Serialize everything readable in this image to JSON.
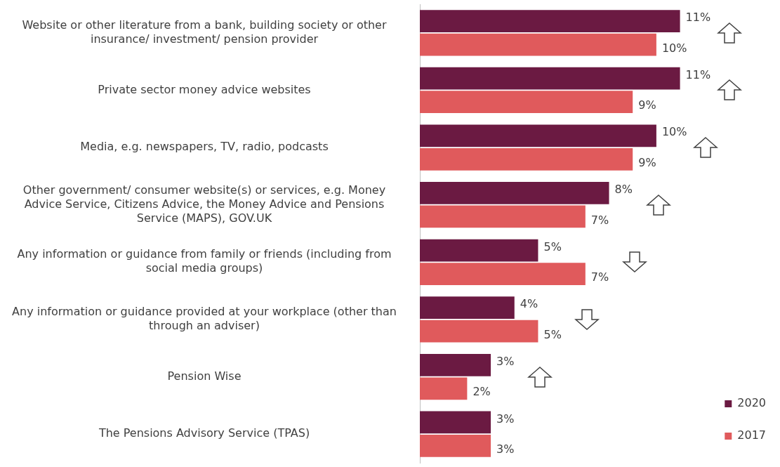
{
  "chart_data": {
    "type": "bar",
    "orientation": "horizontal",
    "categories": [
      "Website or other literature from a bank, building society or other insurance/ investment/ pension provider",
      "Private sector money advice websites",
      "Media, e.g. newspapers, TV, radio, podcasts",
      "Other government/ consumer website(s) or services, e.g. Money Advice Service, Citizens Advice, the Money Advice and Pensions Service (MAPS), GOV.UK",
      "Any information or guidance from family or friends (including from social media groups)",
      "Any information or guidance provided at your workplace (other than through an adviser)",
      "Pension Wise",
      "The Pensions Advisory Service (TPAS)"
    ],
    "series": [
      {
        "name": "2020",
        "color": "#6b1a42",
        "values": [
          11,
          11,
          10,
          8,
          5,
          4,
          3,
          3
        ],
        "value_labels": [
          "11%",
          "11%",
          "10%",
          "8%",
          "5%",
          "4%",
          "3%",
          "3%"
        ]
      },
      {
        "name": "2017",
        "color": "#e05a5c",
        "values": [
          10,
          9,
          9,
          7,
          7,
          5,
          2,
          3
        ],
        "value_labels": [
          "10%",
          "9%",
          "9%",
          "7%",
          "7%",
          "5%",
          "2%",
          "3%"
        ]
      }
    ],
    "legend": "bottom right",
    "grid": false
  }
}
